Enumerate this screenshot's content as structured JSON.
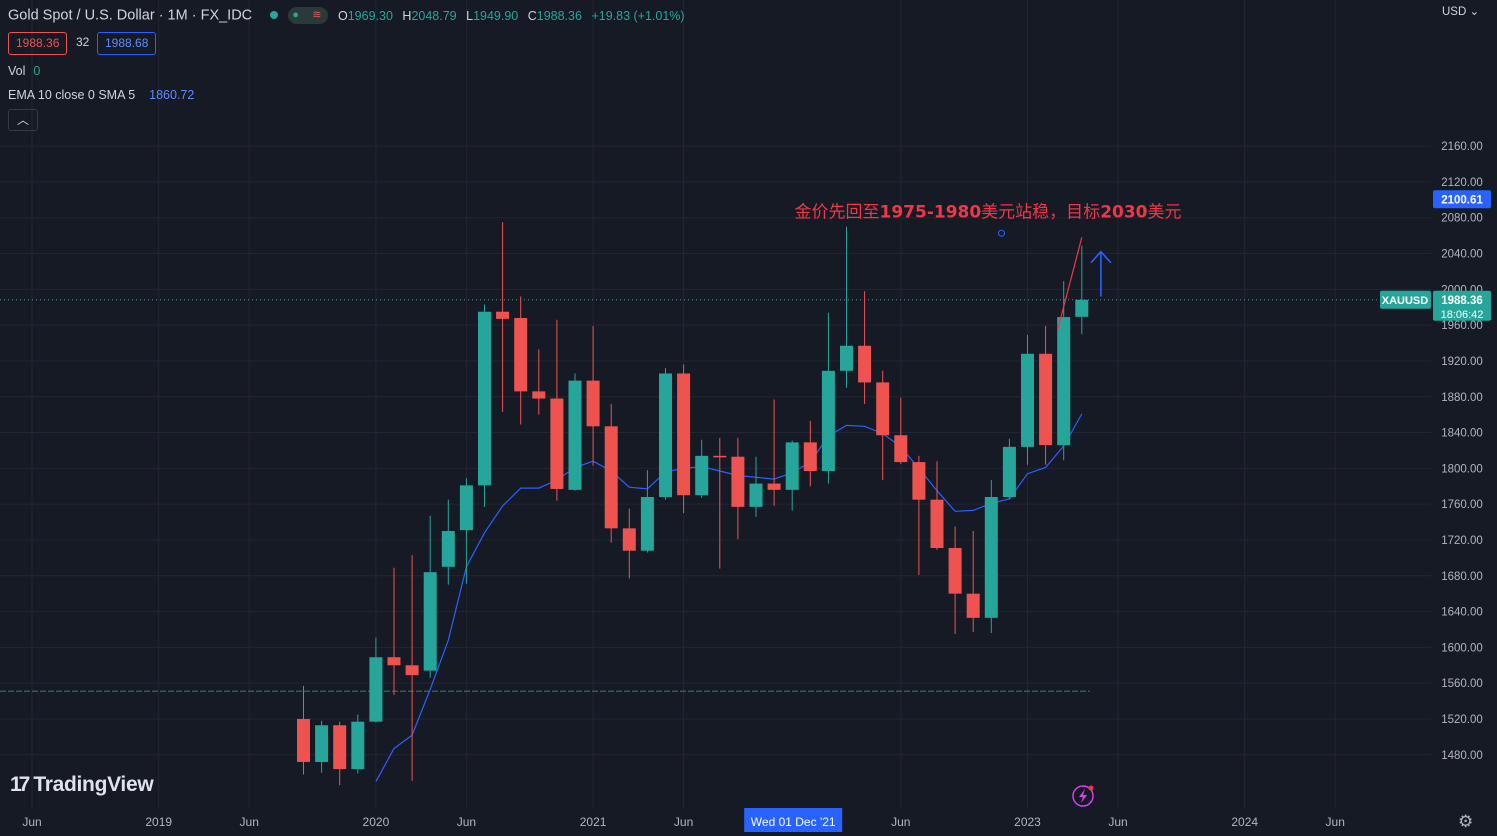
{
  "header": {
    "title": "Gold Spot / U.S. Dollar · 1M · FX_IDC",
    "toggle_icon": "≋",
    "ohlc": [
      {
        "key": "O",
        "value": "1969.30"
      },
      {
        "key": "H",
        "value": "2048.79"
      },
      {
        "key": "L",
        "value": "1949.90"
      },
      {
        "key": "C",
        "value": "1988.36"
      }
    ],
    "change": "+19.83 (+1.01%)",
    "bid": "1988.36",
    "spread": "32",
    "ask": "1988.68"
  },
  "indicators": {
    "vol_label": "Vol",
    "vol_value": "0",
    "ema_label": "EMA 10 close 0 SMA 5",
    "ema_value": "1860.72"
  },
  "currency_label": "USD",
  "logo_text": "TradingView",
  "colors": {
    "up": "#26a69a",
    "down": "#ef5350",
    "ema": "#2962ff",
    "annotation": "#f23645",
    "arrow": "#2962ff"
  },
  "chart_data": {
    "type": "candlestick",
    "symbol": "XAUUSD",
    "interval": "1M",
    "ylim": [
      1460,
      2180
    ],
    "y_ticks": [
      1480,
      1520,
      1560,
      1600,
      1640,
      1680,
      1720,
      1760,
      1800,
      1840,
      1880,
      1920,
      1960,
      2000,
      2040,
      2080,
      2120,
      2160
    ],
    "x_ticks": [
      {
        "label": "Jun",
        "date": "2018-06"
      },
      {
        "label": "2019",
        "date": "2019-01"
      },
      {
        "label": "Jun",
        "date": "2019-06"
      },
      {
        "label": "2020",
        "date": "2020-01"
      },
      {
        "label": "Jun",
        "date": "2020-06"
      },
      {
        "label": "2021",
        "date": "2021-01"
      },
      {
        "label": "Jun",
        "date": "2021-06"
      },
      {
        "label": "Jun",
        "date": "2022-06"
      },
      {
        "label": "2023",
        "date": "2023-01"
      },
      {
        "label": "Jun",
        "date": "2023-06"
      },
      {
        "label": "2024",
        "date": "2024-01"
      },
      {
        "label": "Jun",
        "date": "2024-06"
      }
    ],
    "crosshair_date_label": {
      "label": "Wed 01 Dec '21",
      "date": "2021-12"
    },
    "last_price_label": {
      "symbol": "XAUUSD",
      "price": "1988.36",
      "countdown": "18:06:42",
      "value": 1988.36
    },
    "crosshair_price_label": {
      "price": "2100.61",
      "value": 2100.61
    },
    "candles": [
      {
        "date": "2019-09",
        "o": 1520,
        "h": 1557,
        "l": 1458,
        "c": 1472
      },
      {
        "date": "2019-10",
        "o": 1472,
        "h": 1518,
        "l": 1460,
        "c": 1513
      },
      {
        "date": "2019-11",
        "o": 1513,
        "h": 1517,
        "l": 1446,
        "c": 1464
      },
      {
        "date": "2019-12",
        "o": 1464,
        "h": 1525,
        "l": 1459,
        "c": 1517
      },
      {
        "date": "2020-01",
        "o": 1517,
        "h": 1611,
        "l": 1516,
        "c": 1589
      },
      {
        "date": "2020-02",
        "o": 1589,
        "h": 1689,
        "l": 1547,
        "c": 1580
      },
      {
        "date": "2020-03",
        "o": 1580,
        "h": 1703,
        "l": 1451,
        "c": 1569
      },
      {
        "date": "2020-04",
        "o": 1574,
        "h": 1747,
        "l": 1566,
        "c": 1684
      },
      {
        "date": "2020-05",
        "o": 1690,
        "h": 1765,
        "l": 1670,
        "c": 1730
      },
      {
        "date": "2020-06",
        "o": 1731,
        "h": 1789,
        "l": 1671,
        "c": 1781
      },
      {
        "date": "2020-07",
        "o": 1781,
        "h": 1983,
        "l": 1757,
        "c": 1975
      },
      {
        "date": "2020-08",
        "o": 1975,
        "h": 2075,
        "l": 1863,
        "c": 1967
      },
      {
        "date": "2020-09",
        "o": 1968,
        "h": 1992,
        "l": 1849,
        "c": 1886
      },
      {
        "date": "2020-10",
        "o": 1886,
        "h": 1933,
        "l": 1860,
        "c": 1878
      },
      {
        "date": "2020-11",
        "o": 1878,
        "h": 1966,
        "l": 1764,
        "c": 1777
      },
      {
        "date": "2020-12",
        "o": 1776,
        "h": 1906,
        "l": 1775,
        "c": 1898
      },
      {
        "date": "2021-01",
        "o": 1898,
        "h": 1959,
        "l": 1803,
        "c": 1847
      },
      {
        "date": "2021-02",
        "o": 1847,
        "h": 1872,
        "l": 1717,
        "c": 1733
      },
      {
        "date": "2021-03",
        "o": 1733,
        "h": 1755,
        "l": 1677,
        "c": 1708
      },
      {
        "date": "2021-04",
        "o": 1708,
        "h": 1798,
        "l": 1706,
        "c": 1768
      },
      {
        "date": "2021-05",
        "o": 1768,
        "h": 1912,
        "l": 1765,
        "c": 1906
      },
      {
        "date": "2021-06",
        "o": 1906,
        "h": 1916,
        "l": 1750,
        "c": 1770
      },
      {
        "date": "2021-07",
        "o": 1770,
        "h": 1832,
        "l": 1767,
        "c": 1814
      },
      {
        "date": "2021-08",
        "o": 1814,
        "h": 1834,
        "l": 1688,
        "c": 1813
      },
      {
        "date": "2021-09",
        "o": 1813,
        "h": 1834,
        "l": 1721,
        "c": 1757
      },
      {
        "date": "2021-10",
        "o": 1757,
        "h": 1813,
        "l": 1746,
        "c": 1783
      },
      {
        "date": "2021-11",
        "o": 1783,
        "h": 1877,
        "l": 1758,
        "c": 1776
      },
      {
        "date": "2021-12",
        "o": 1776,
        "h": 1831,
        "l": 1753,
        "c": 1829
      },
      {
        "date": "2022-01",
        "o": 1829,
        "h": 1853,
        "l": 1780,
        "c": 1797
      },
      {
        "date": "2022-02",
        "o": 1797,
        "h": 1974,
        "l": 1783,
        "c": 1909
      },
      {
        "date": "2022-03",
        "o": 1909,
        "h": 2070,
        "l": 1890,
        "c": 1937
      },
      {
        "date": "2022-04",
        "o": 1937,
        "h": 1998,
        "l": 1872,
        "c": 1896
      },
      {
        "date": "2022-05",
        "o": 1896,
        "h": 1909,
        "l": 1787,
        "c": 1837
      },
      {
        "date": "2022-06",
        "o": 1837,
        "h": 1879,
        "l": 1805,
        "c": 1807
      },
      {
        "date": "2022-07",
        "o": 1807,
        "h": 1814,
        "l": 1681,
        "c": 1765
      },
      {
        "date": "2022-08",
        "o": 1765,
        "h": 1808,
        "l": 1709,
        "c": 1711
      },
      {
        "date": "2022-09",
        "o": 1711,
        "h": 1735,
        "l": 1615,
        "c": 1660
      },
      {
        "date": "2022-10",
        "o": 1660,
        "h": 1730,
        "l": 1617,
        "c": 1633
      },
      {
        "date": "2022-11",
        "o": 1633,
        "h": 1787,
        "l": 1616,
        "c": 1768
      },
      {
        "date": "2022-12",
        "o": 1768,
        "h": 1833,
        "l": 1765,
        "c": 1824
      },
      {
        "date": "2023-01",
        "o": 1824,
        "h": 1949,
        "l": 1804,
        "c": 1928
      },
      {
        "date": "2023-02",
        "o": 1928,
        "h": 1959,
        "l": 1804,
        "c": 1826
      },
      {
        "date": "2023-03",
        "o": 1826,
        "h": 2009,
        "l": 1809,
        "c": 1969
      },
      {
        "date": "2023-04",
        "o": 1969.3,
        "h": 2048.79,
        "l": 1949.9,
        "c": 1988.36
      }
    ],
    "ema": [
      {
        "date": "2020-01",
        "value": 1450
      },
      {
        "date": "2020-02",
        "value": 1487
      },
      {
        "date": "2020-03",
        "value": 1502
      },
      {
        "date": "2020-04",
        "value": 1553
      },
      {
        "date": "2020-05",
        "value": 1608
      },
      {
        "date": "2020-06",
        "value": 1690
      },
      {
        "date": "2020-07",
        "value": 1728
      },
      {
        "date": "2020-08",
        "value": 1758
      },
      {
        "date": "2020-09",
        "value": 1778
      },
      {
        "date": "2020-10",
        "value": 1778
      },
      {
        "date": "2020-11",
        "value": 1787
      },
      {
        "date": "2020-12",
        "value": 1801
      },
      {
        "date": "2021-01",
        "value": 1808
      },
      {
        "date": "2021-02",
        "value": 1797
      },
      {
        "date": "2021-03",
        "value": 1779
      },
      {
        "date": "2021-04",
        "value": 1777
      },
      {
        "date": "2021-05",
        "value": 1796
      },
      {
        "date": "2021-06",
        "value": 1800
      },
      {
        "date": "2021-07",
        "value": 1802
      },
      {
        "date": "2021-08",
        "value": 1797
      },
      {
        "date": "2021-09",
        "value": 1792
      },
      {
        "date": "2021-10",
        "value": 1790
      },
      {
        "date": "2021-11",
        "value": 1788
      },
      {
        "date": "2021-12",
        "value": 1795
      },
      {
        "date": "2022-01",
        "value": 1807
      },
      {
        "date": "2022-02",
        "value": 1836
      },
      {
        "date": "2022-03",
        "value": 1848
      },
      {
        "date": "2022-04",
        "value": 1847
      },
      {
        "date": "2022-05",
        "value": 1839
      },
      {
        "date": "2022-06",
        "value": 1824
      },
      {
        "date": "2022-07",
        "value": 1800
      },
      {
        "date": "2022-08",
        "value": 1775
      },
      {
        "date": "2022-09",
        "value": 1752
      },
      {
        "date": "2022-10",
        "value": 1753
      },
      {
        "date": "2022-11",
        "value": 1761
      },
      {
        "date": "2022-12",
        "value": 1766
      },
      {
        "date": "2023-01",
        "value": 1794
      },
      {
        "date": "2023-02",
        "value": 1801
      },
      {
        "date": "2023-03",
        "value": 1825
      },
      {
        "date": "2023-04",
        "value": 1860.72
      }
    ],
    "annotation": {
      "text_parts": [
        "金价先回至",
        "1975-1980",
        "美元站稳，目标",
        "2030",
        "美元"
      ],
      "anchor": {
        "date": "2022-03",
        "value": 2085
      }
    },
    "trend_line": {
      "from": {
        "date": "2023-03",
        "value": 1955
      },
      "to": {
        "date": "2023-04",
        "value": 2058
      }
    },
    "target_arrow": {
      "date": "2023-05",
      "from": 1992,
      "to": 2042
    },
    "volume_baseline_value": 1551,
    "grid": true
  }
}
